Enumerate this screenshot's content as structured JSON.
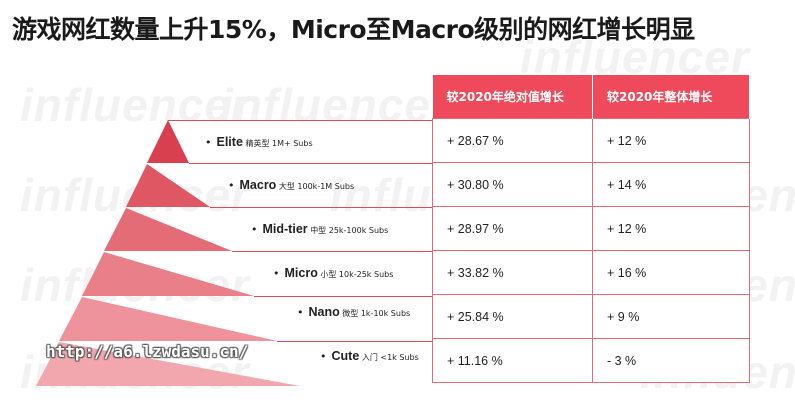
{
  "title": "游戏网红数量上升15%，Micro至Macro级别的网红增长明显",
  "watermark": "influencer",
  "table": {
    "headers": [
      "较2020年绝对值增长",
      "较2020年整体增长"
    ]
  },
  "levels": [
    {
      "name": "Elite",
      "desc": "精英型 1M+ Subs",
      "abs": "+ 28.67 %",
      "overall": "+ 12 %"
    },
    {
      "name": "Macro",
      "desc": "大型 100k-1M Subs",
      "abs": "+ 30.80 %",
      "overall": "+ 14 %"
    },
    {
      "name": "Mid-tier",
      "desc": "中型 25k-100k Subs",
      "abs": "+ 28.97 %",
      "overall": "+ 12 %"
    },
    {
      "name": "Micro",
      "desc": "小型 10k-25k Subs",
      "abs": "+ 33.82 %",
      "overall": "+ 16 %"
    },
    {
      "name": "Nano",
      "desc": "微型 1k-10k Subs",
      "abs": "+ 25.84 %",
      "overall": "+ 9 %"
    },
    {
      "name": "Cute",
      "desc": "入门 <1k Subs",
      "abs": "+ 11.16 %",
      "overall": "- 3 %"
    }
  ],
  "overlay_url": "http://a6.lzwdasu.cn/",
  "colors": {
    "accent": "#ee4a5b",
    "tiers": [
      "#d9404f",
      "#df5763",
      "#e46c77",
      "#e97f88",
      "#ee939b",
      "#f2a7ae"
    ]
  }
}
